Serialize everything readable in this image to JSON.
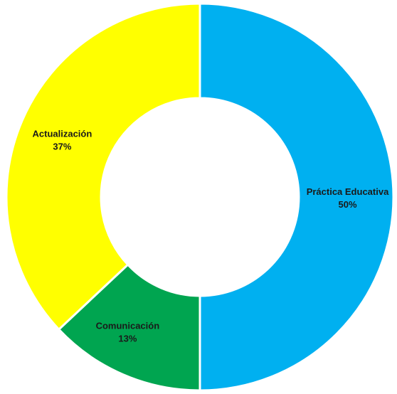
{
  "chart_data": {
    "type": "pie",
    "variant": "donut",
    "title": "",
    "slices": [
      {
        "label": "Práctica Educativa",
        "percent_label": "50%",
        "value": 50,
        "color": "#00b0f0"
      },
      {
        "label": "Comunicación",
        "percent_label": "13%",
        "value": 13,
        "color": "#00a550"
      },
      {
        "label": "Actualización",
        "percent_label": "37%",
        "value": 37,
        "color": "#ffff00"
      }
    ],
    "legend": "none",
    "start": "top",
    "direction": "clockwise"
  }
}
